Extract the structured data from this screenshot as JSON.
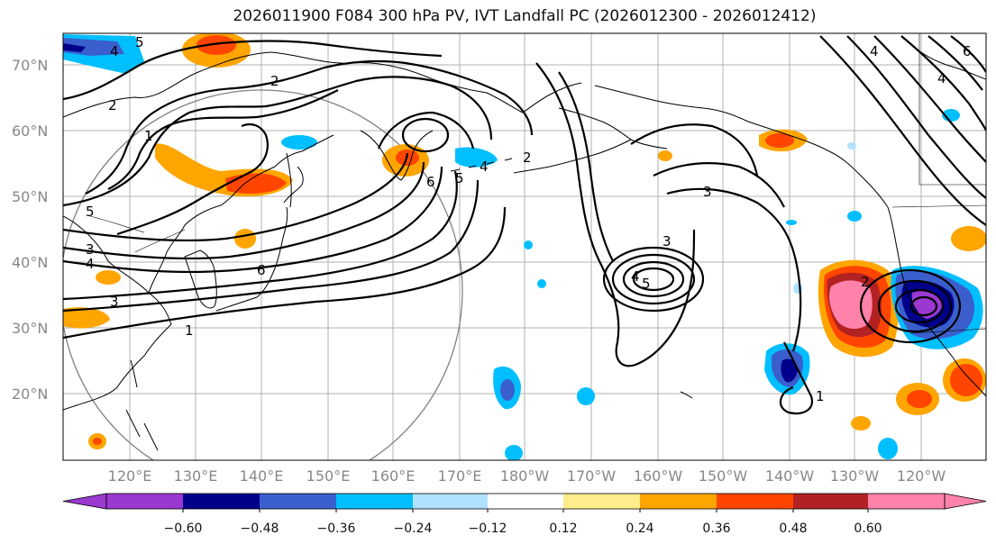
{
  "title": "2026011900 F084 300 hPa PV, IVT Landfall PC (2026012300 - 2026012412)",
  "lat_labels": [
    "70°N",
    "60°N",
    "50°N",
    "40°N",
    "30°N",
    "20°N"
  ],
  "lon_labels": [
    "120°E",
    "130°E",
    "140°E",
    "150°E",
    "160°E",
    "170°E",
    "180°W",
    "170°W",
    "160°W",
    "150°W",
    "140°W",
    "130°W",
    "120°W"
  ],
  "colorbar": {
    "ticks": [
      "−0.60",
      "−0.48",
      "−0.36",
      "−0.24",
      "−0.12",
      "0.12",
      "0.24",
      "0.36",
      "0.48",
      "0.60"
    ],
    "colors": [
      "#9a38d0",
      "#00008b",
      "#3a5fcd",
      "#00bfff",
      "#b0e2ff",
      "#ffffff",
      "#ffec8b",
      "#ffa500",
      "#ff4500",
      "#b22222",
      "#ff82ab",
      "#ff82ab"
    ]
  },
  "contour_labels": [
    "2",
    "5",
    "4",
    "2",
    "1",
    "5",
    "3",
    "4",
    "3",
    "1",
    "6",
    "6",
    "5",
    "4",
    "2",
    "3",
    "3",
    "4",
    "5",
    "1",
    "2",
    "4",
    "6",
    "4"
  ]
}
